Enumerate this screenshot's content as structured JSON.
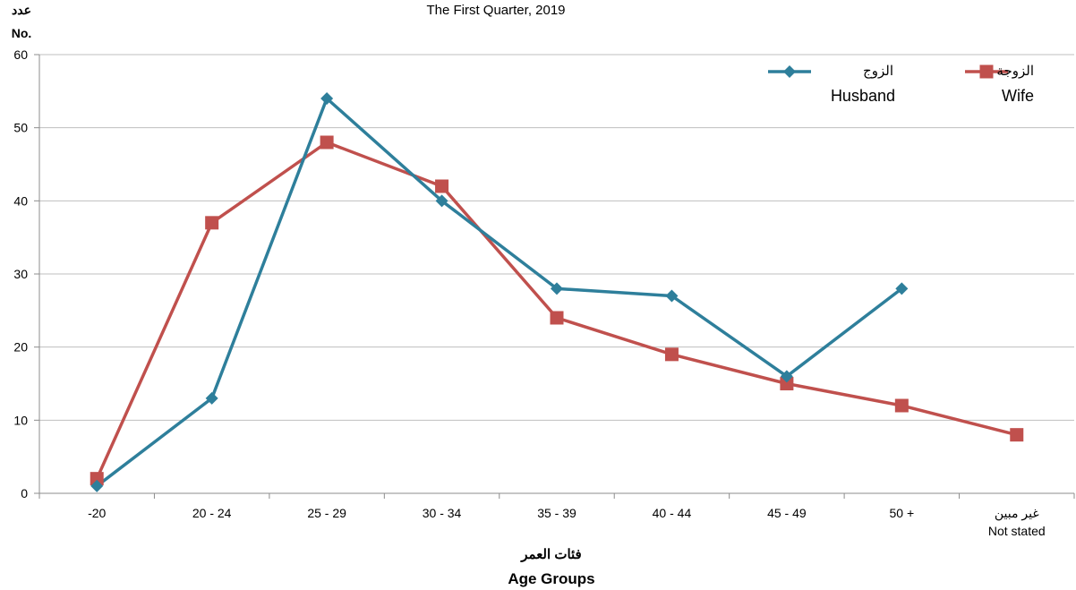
{
  "chart_data": {
    "type": "line",
    "title": "The First Quarter, 2019",
    "ylabel_ar": "عدد",
    "ylabel_en": "No.",
    "xlabel_ar": "فئات العمر",
    "xlabel_en": "Age Groups",
    "ylim": [
      0,
      60
    ],
    "yticks": [
      "0",
      "10",
      "20",
      "30",
      "40",
      "50",
      "60"
    ],
    "categories": [
      "-20",
      "20 - 24",
      "25 - 29",
      "30 - 34",
      "35 - 39",
      "40 - 44",
      "45 - 49",
      "50 +",
      "غير مبين"
    ],
    "category_sublabels": [
      "",
      "",
      "",
      "",
      "",
      "",
      "",
      "",
      "Not stated"
    ],
    "grid": true,
    "legend_position": "top-right",
    "series": [
      {
        "name_ar": "الزوج",
        "name_en": "Husband",
        "color": "#2e7f9b",
        "marker": "diamond",
        "values": [
          1,
          13,
          54,
          40,
          28,
          27,
          16,
          28,
          null
        ]
      },
      {
        "name_ar": "الزوجة",
        "name_en": "Wife",
        "color": "#c0504d",
        "marker": "square",
        "values": [
          2,
          37,
          48,
          42,
          24,
          19,
          15,
          12,
          8
        ]
      }
    ]
  }
}
